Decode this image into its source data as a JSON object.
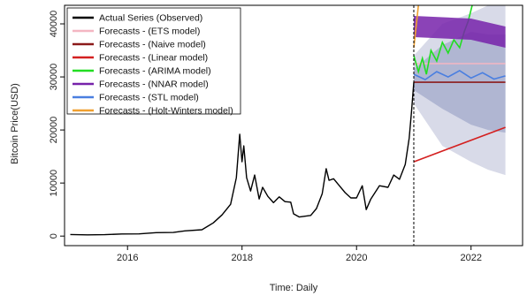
{
  "chart_data": {
    "type": "line",
    "xlabel": "Time: Daily",
    "ylabel": "Bitcoin Price(USD)",
    "xlim": [
      2014.9,
      2022.9
    ],
    "ylim": [
      -1800,
      43500
    ],
    "x_ticks": [
      2016,
      2018,
      2020,
      2022
    ],
    "y_ticks": [
      0,
      10000,
      20000,
      30000,
      40000
    ],
    "legend_position": "top-left",
    "forecast_start": 2021.0,
    "actual": {
      "name": "Actual Series (Observed)",
      "color": "#000000",
      "points": [
        [
          2015.0,
          300
        ],
        [
          2015.3,
          240
        ],
        [
          2015.6,
          260
        ],
        [
          2015.9,
          400
        ],
        [
          2016.2,
          420
        ],
        [
          2016.5,
          650
        ],
        [
          2016.8,
          680
        ],
        [
          2017.0,
          980
        ],
        [
          2017.3,
          1200
        ],
        [
          2017.5,
          2500
        ],
        [
          2017.65,
          4000
        ],
        [
          2017.8,
          6000
        ],
        [
          2017.9,
          11000
        ],
        [
          2017.96,
          19200
        ],
        [
          2018.0,
          14000
        ],
        [
          2018.03,
          17000
        ],
        [
          2018.08,
          11000
        ],
        [
          2018.15,
          8500
        ],
        [
          2018.22,
          11500
        ],
        [
          2018.3,
          7000
        ],
        [
          2018.36,
          9200
        ],
        [
          2018.45,
          7500
        ],
        [
          2018.55,
          6300
        ],
        [
          2018.65,
          7400
        ],
        [
          2018.75,
          6500
        ],
        [
          2018.85,
          6400
        ],
        [
          2018.9,
          4200
        ],
        [
          2019.0,
          3600
        ],
        [
          2019.2,
          3900
        ],
        [
          2019.3,
          5200
        ],
        [
          2019.4,
          8000
        ],
        [
          2019.47,
          12700
        ],
        [
          2019.52,
          10500
        ],
        [
          2019.6,
          10800
        ],
        [
          2019.7,
          9500
        ],
        [
          2019.8,
          8200
        ],
        [
          2019.9,
          7200
        ],
        [
          2020.0,
          7200
        ],
        [
          2020.1,
          9500
        ],
        [
          2020.17,
          5000
        ],
        [
          2020.25,
          7000
        ],
        [
          2020.4,
          9500
        ],
        [
          2020.55,
          9200
        ],
        [
          2020.65,
          11500
        ],
        [
          2020.75,
          10700
        ],
        [
          2020.85,
          13500
        ],
        [
          2020.92,
          18500
        ],
        [
          2020.96,
          23500
        ],
        [
          2021.0,
          29000
        ]
      ]
    },
    "forecast_fan": {
      "outer_color": "#d8dae8",
      "inner_color": "#b0b6d2",
      "x": [
        2021.0,
        2021.5,
        2022.0,
        2022.3,
        2022.6
      ],
      "outer_low": [
        25000,
        17000,
        14000,
        12500,
        11500
      ],
      "outer_high": [
        34000,
        40000,
        42000,
        43500,
        43500
      ],
      "inner_low": [
        27500,
        24000,
        21000,
        20000,
        19500
      ],
      "inner_high": [
        31500,
        36000,
        38500,
        38000,
        38000
      ]
    },
    "series": [
      {
        "name": "Forecasts - (ETS model)",
        "color": "#f4b6c2",
        "points": [
          [
            2021.0,
            32500
          ],
          [
            2022.6,
            32500
          ]
        ]
      },
      {
        "name": "Forecasts - (Naive model)",
        "color": "#8b1a1a",
        "points": [
          [
            2021.0,
            29000
          ],
          [
            2022.6,
            29000
          ]
        ]
      },
      {
        "name": "Forecasts - (Linear model)",
        "color": "#d42020",
        "points": [
          [
            2021.0,
            14000
          ],
          [
            2022.6,
            20500
          ]
        ]
      },
      {
        "name": "Forecasts - (ARIMA model)",
        "color": "#22dd22",
        "points": [
          [
            2021.0,
            34000
          ],
          [
            2021.08,
            31000
          ],
          [
            2021.15,
            33500
          ],
          [
            2021.22,
            30500
          ],
          [
            2021.3,
            35000
          ],
          [
            2021.4,
            33000
          ],
          [
            2021.5,
            36500
          ],
          [
            2021.6,
            34500
          ],
          [
            2021.7,
            37000
          ],
          [
            2021.8,
            35500
          ],
          [
            2021.88,
            38500
          ],
          [
            2021.95,
            40500
          ],
          [
            2022.02,
            43500
          ]
        ]
      },
      {
        "name": "Forecasts - (NNAR model)",
        "color": "#7722aa",
        "band": true,
        "low": [
          [
            2021.0,
            37500
          ],
          [
            2022.0,
            37000
          ],
          [
            2022.6,
            35500
          ]
        ],
        "high": [
          [
            2021.0,
            41500
          ],
          [
            2022.0,
            41000
          ],
          [
            2022.6,
            39500
          ]
        ]
      },
      {
        "name": "Forecasts - (STL model)",
        "color": "#4a7fe0",
        "points": [
          [
            2021.0,
            30500
          ],
          [
            2021.2,
            29500
          ],
          [
            2021.4,
            31000
          ],
          [
            2021.6,
            30000
          ],
          [
            2021.8,
            31200
          ],
          [
            2022.0,
            29800
          ],
          [
            2022.2,
            30800
          ],
          [
            2022.4,
            29600
          ],
          [
            2022.6,
            30200
          ]
        ]
      },
      {
        "name": "Forecasts - (Holt-Winters model)",
        "color": "#f0a030",
        "points": [
          [
            2021.0,
            35500
          ],
          [
            2021.08,
            43500
          ]
        ]
      }
    ]
  }
}
